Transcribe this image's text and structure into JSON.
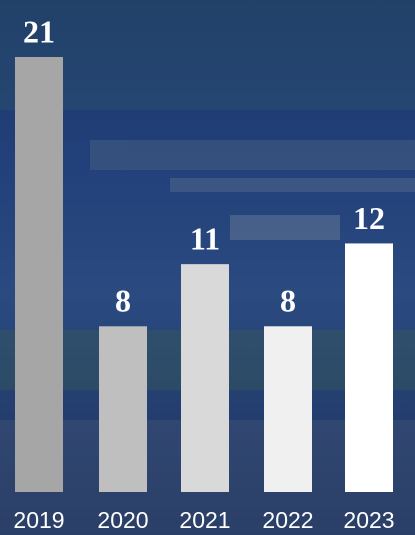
{
  "chart_data": {
    "type": "bar",
    "categories": [
      "2019",
      "2020",
      "2021",
      "2022",
      "2023"
    ],
    "values": [
      21,
      8,
      11,
      8,
      12
    ],
    "colors": [
      "#a6a6a6",
      "#bfbfbf",
      "#d9d9d9",
      "#f0f0f0",
      "#ffffff"
    ]
  }
}
